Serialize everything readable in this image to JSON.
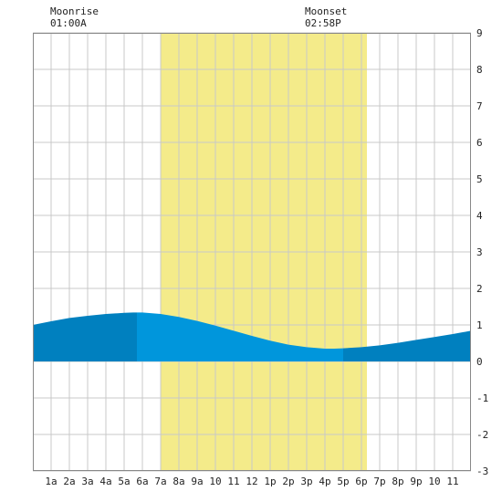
{
  "moon": {
    "rise_title": "Moonrise",
    "rise_time": "01:00A",
    "set_title": "Moonset",
    "set_time": "02:58P"
  },
  "chart_data": {
    "type": "area",
    "title": "",
    "xlabel": "",
    "ylabel": "",
    "xlim": [
      0,
      24
    ],
    "ylim": [
      -3,
      9
    ],
    "grid": true,
    "x_ticks": [
      1,
      2,
      3,
      4,
      5,
      6,
      7,
      8,
      9,
      10,
      11,
      12,
      13,
      14,
      15,
      16,
      17,
      18,
      19,
      20,
      21,
      22,
      23
    ],
    "x_tick_labels": [
      "1a",
      "2a",
      "3a",
      "4a",
      "5a",
      "6a",
      "7a",
      "8a",
      "9a",
      "10",
      "11",
      "12",
      "1p",
      "2p",
      "3p",
      "4p",
      "5p",
      "6p",
      "7p",
      "8p",
      "9p",
      "10",
      "11"
    ],
    "y_ticks": [
      -3,
      -2,
      -1,
      0,
      1,
      2,
      3,
      4,
      5,
      6,
      7,
      8,
      9
    ],
    "y_tick_labels": [
      "-3",
      "-2",
      "-1",
      "0",
      "1",
      "2",
      "3",
      "4",
      "5",
      "6",
      "7",
      "8",
      "9"
    ],
    "daylight": {
      "start": 7,
      "end": 18.3
    },
    "tide_shading": [
      {
        "from": 0,
        "to": 5.7,
        "phase": "dark"
      },
      {
        "from": 5.7,
        "to": 17,
        "phase": "light"
      },
      {
        "from": 17,
        "to": 24,
        "phase": "dark"
      }
    ],
    "series": [
      {
        "x": [
          0,
          1,
          2,
          3,
          4,
          5,
          5.5,
          6,
          7,
          8,
          9,
          10,
          11,
          12,
          13,
          14,
          15,
          16,
          16.5,
          17,
          18,
          19,
          20,
          21,
          22,
          23,
          24
        ],
        "values": [
          1.0,
          1.1,
          1.19,
          1.25,
          1.3,
          1.33,
          1.34,
          1.34,
          1.3,
          1.22,
          1.11,
          0.98,
          0.84,
          0.7,
          0.57,
          0.46,
          0.39,
          0.35,
          0.35,
          0.36,
          0.39,
          0.44,
          0.51,
          0.59,
          0.67,
          0.75,
          0.84
        ]
      }
    ],
    "colors": {
      "daylight": "#f4eb8a",
      "tide_dark": "#0080bf",
      "tide_light": "#0096dc",
      "grid": "#c8c8c8",
      "frame": "#888888"
    }
  }
}
